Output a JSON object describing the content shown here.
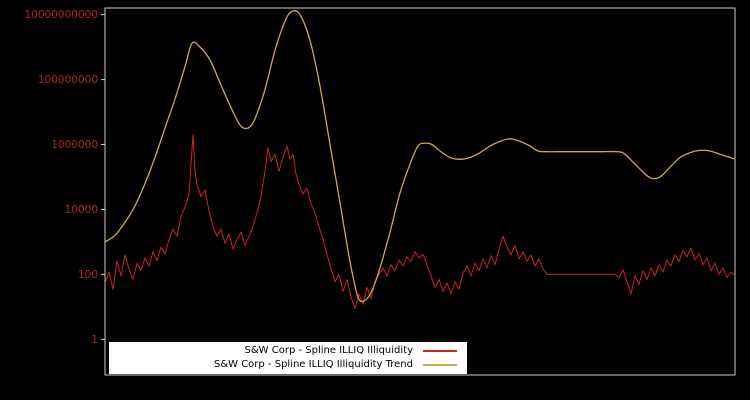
{
  "window": {
    "background": "#000000"
  },
  "chart_data": {
    "type": "line",
    "title": "",
    "y_scale": "log",
    "grid": false,
    "legend_position": "bottom-left-inside",
    "frame_color": "#cccccc",
    "axis_label_color": "#b22222",
    "xlim": [
      0,
      630
    ],
    "ylim": [
      0.08,
      16000000000
    ],
    "y_ticks": [
      {
        "label": "1",
        "value": 1
      },
      {
        "label": "100",
        "value": 100
      },
      {
        "label": "10000",
        "value": 10000
      },
      {
        "label": "1000000",
        "value": 1000000
      },
      {
        "label": "100000000",
        "value": 100000000
      },
      {
        "label": "10000000000",
        "value": 10000000000
      }
    ],
    "legend": {
      "background": "#ffffff",
      "text_color": "#000000"
    },
    "series": [
      {
        "name": "S&W Corp - Spline ILLIQ Illiquidity",
        "color": "#cc2222",
        "smooth": false,
        "points": [
          [
            0,
            50
          ],
          [
            4,
            120
          ],
          [
            8,
            35
          ],
          [
            12,
            260
          ],
          [
            16,
            90
          ],
          [
            20,
            400
          ],
          [
            24,
            150
          ],
          [
            28,
            70
          ],
          [
            32,
            220
          ],
          [
            36,
            130
          ],
          [
            40,
            320
          ],
          [
            44,
            180
          ],
          [
            48,
            500
          ],
          [
            52,
            260
          ],
          [
            56,
            700
          ],
          [
            60,
            420
          ],
          [
            64,
            1200
          ],
          [
            68,
            2500
          ],
          [
            72,
            1500
          ],
          [
            76,
            6000
          ],
          [
            80,
            12000
          ],
          [
            84,
            30000
          ],
          [
            88,
            2000000
          ],
          [
            90,
            150000
          ],
          [
            92,
            60000
          ],
          [
            96,
            25000
          ],
          [
            100,
            40000
          ],
          [
            104,
            9000
          ],
          [
            108,
            3000
          ],
          [
            112,
            1500
          ],
          [
            116,
            2500
          ],
          [
            120,
            900
          ],
          [
            124,
            1800
          ],
          [
            128,
            600
          ],
          [
            132,
            1200
          ],
          [
            136,
            2000
          ],
          [
            140,
            800
          ],
          [
            144,
            1500
          ],
          [
            148,
            3000
          ],
          [
            152,
            8000
          ],
          [
            156,
            25000
          ],
          [
            160,
            150000
          ],
          [
            163,
            800000
          ],
          [
            166,
            300000
          ],
          [
            170,
            500000
          ],
          [
            174,
            150000
          ],
          [
            178,
            400000
          ],
          [
            182,
            900000
          ],
          [
            185,
            350000
          ],
          [
            188,
            500000
          ],
          [
            191,
            120000
          ],
          [
            194,
            60000
          ],
          [
            198,
            30000
          ],
          [
            202,
            45000
          ],
          [
            206,
            15000
          ],
          [
            210,
            8000
          ],
          [
            214,
            3000
          ],
          [
            218,
            1200
          ],
          [
            222,
            400
          ],
          [
            226,
            150
          ],
          [
            230,
            60
          ],
          [
            234,
            100
          ],
          [
            238,
            30
          ],
          [
            242,
            70
          ],
          [
            246,
            20
          ],
          [
            250,
            9
          ],
          [
            254,
            25
          ],
          [
            258,
            12
          ],
          [
            262,
            40
          ],
          [
            266,
            18
          ],
          [
            270,
            60
          ],
          [
            274,
            100
          ],
          [
            278,
            160
          ],
          [
            282,
            90
          ],
          [
            286,
            200
          ],
          [
            290,
            130
          ],
          [
            294,
            280
          ],
          [
            298,
            180
          ],
          [
            302,
            350
          ],
          [
            306,
            250
          ],
          [
            310,
            500
          ],
          [
            314,
            320
          ],
          [
            318,
            420
          ],
          [
            322,
            200
          ],
          [
            326,
            90
          ],
          [
            330,
            40
          ],
          [
            334,
            70
          ],
          [
            338,
            30
          ],
          [
            342,
            55
          ],
          [
            346,
            25
          ],
          [
            350,
            60
          ],
          [
            354,
            35
          ],
          [
            358,
            110
          ],
          [
            362,
            180
          ],
          [
            366,
            90
          ],
          [
            370,
            220
          ],
          [
            374,
            130
          ],
          [
            378,
            300
          ],
          [
            382,
            160
          ],
          [
            386,
            380
          ],
          [
            390,
            200
          ],
          [
            394,
            600
          ],
          [
            398,
            1500
          ],
          [
            402,
            700
          ],
          [
            406,
            400
          ],
          [
            410,
            800
          ],
          [
            414,
            300
          ],
          [
            418,
            500
          ],
          [
            422,
            250
          ],
          [
            426,
            400
          ],
          [
            430,
            180
          ],
          [
            434,
            300
          ],
          [
            438,
            150
          ],
          [
            442,
            100
          ],
          [
            450,
            100
          ],
          [
            460,
            100
          ],
          [
            470,
            100
          ],
          [
            480,
            100
          ],
          [
            490,
            100
          ],
          [
            500,
            100
          ],
          [
            510,
            100
          ],
          [
            514,
            80
          ],
          [
            518,
            140
          ],
          [
            522,
            60
          ],
          [
            526,
            25
          ],
          [
            530,
            90
          ],
          [
            534,
            50
          ],
          [
            538,
            130
          ],
          [
            542,
            70
          ],
          [
            546,
            160
          ],
          [
            550,
            90
          ],
          [
            554,
            200
          ],
          [
            558,
            120
          ],
          [
            562,
            280
          ],
          [
            566,
            180
          ],
          [
            570,
            400
          ],
          [
            574,
            250
          ],
          [
            578,
            550
          ],
          [
            582,
            350
          ],
          [
            586,
            650
          ],
          [
            590,
            280
          ],
          [
            594,
            450
          ],
          [
            598,
            200
          ],
          [
            602,
            320
          ],
          [
            606,
            130
          ],
          [
            610,
            220
          ],
          [
            614,
            100
          ],
          [
            618,
            160
          ],
          [
            622,
            80
          ],
          [
            626,
            120
          ],
          [
            630,
            90
          ]
        ]
      },
      {
        "name": "S&W Corp - Spline ILLIQ Illiquidity Trend",
        "color": "#ccaa44",
        "smooth": true,
        "points": [
          [
            0,
            1000
          ],
          [
            10,
            1600
          ],
          [
            20,
            4000
          ],
          [
            30,
            13000
          ],
          [
            40,
            63000
          ],
          [
            50,
            400000
          ],
          [
            60,
            3200000
          ],
          [
            70,
            25000000
          ],
          [
            80,
            250000000
          ],
          [
            87,
            1300000000
          ],
          [
            95,
            1000000000
          ],
          [
            105,
            400000000
          ],
          [
            115,
            80000000
          ],
          [
            125,
            16000000
          ],
          [
            135,
            4000000
          ],
          [
            143,
            3200000
          ],
          [
            150,
            6300000
          ],
          [
            160,
            50000000
          ],
          [
            170,
            800000000
          ],
          [
            180,
            6300000000
          ],
          [
            187,
            12600000000
          ],
          [
            195,
            10000000000
          ],
          [
            205,
            1600000000
          ],
          [
            215,
            63000000
          ],
          [
            225,
            1000000
          ],
          [
            235,
            16000
          ],
          [
            245,
            250
          ],
          [
            253,
            20
          ],
          [
            260,
            16
          ],
          [
            267,
            32
          ],
          [
            275,
            160
          ],
          [
            285,
            2000
          ],
          [
            295,
            32000
          ],
          [
            305,
            250000
          ],
          [
            313,
            900000
          ],
          [
            320,
            1100000
          ],
          [
            327,
            1000000
          ],
          [
            335,
            630000
          ],
          [
            345,
            400000
          ],
          [
            355,
            350000
          ],
          [
            365,
            400000
          ],
          [
            375,
            560000
          ],
          [
            385,
            900000
          ],
          [
            395,
            1250000
          ],
          [
            405,
            1500000
          ],
          [
            415,
            1250000
          ],
          [
            425,
            900000
          ],
          [
            433,
            630000
          ],
          [
            440,
            600000
          ],
          [
            455,
            600000
          ],
          [
            475,
            600000
          ],
          [
            495,
            600000
          ],
          [
            513,
            600000
          ],
          [
            520,
            500000
          ],
          [
            530,
            250000
          ],
          [
            540,
            125000
          ],
          [
            547,
            90000
          ],
          [
            555,
            100000
          ],
          [
            565,
            200000
          ],
          [
            575,
            400000
          ],
          [
            585,
            560000
          ],
          [
            595,
            660000
          ],
          [
            605,
            630000
          ],
          [
            615,
            500000
          ],
          [
            625,
            400000
          ],
          [
            630,
            355000
          ]
        ]
      }
    ]
  }
}
